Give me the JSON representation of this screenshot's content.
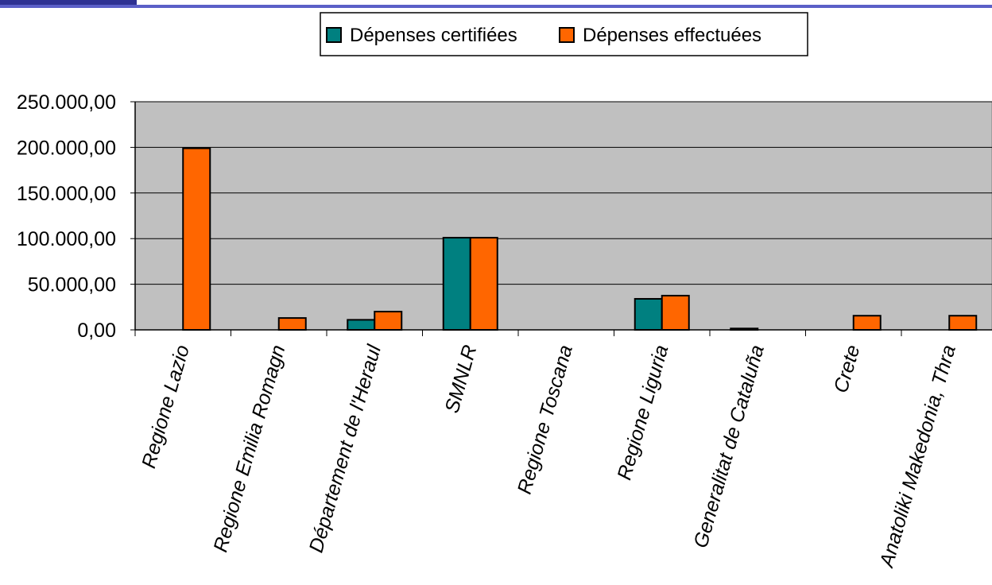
{
  "colors": {
    "header_dark": "#2e3192",
    "header_line": "#5b5fc7",
    "plot_bg": "#c0c0c0",
    "series_certified": "#008080",
    "series_spent": "#ff6600"
  },
  "chart_data": {
    "type": "bar",
    "title": "",
    "xlabel": "",
    "ylabel": "",
    "ylim": [
      0,
      250000
    ],
    "yticks": [
      0,
      50000,
      100000,
      150000,
      200000,
      250000
    ],
    "ytick_labels": [
      "0,00",
      "50.000,00",
      "100.000,00",
      "150.000,00",
      "200.000,00",
      "250.000,00"
    ],
    "grid": true,
    "legend_position": "top",
    "categories": [
      "Regione Lazio",
      "Regione Emilia Romagn",
      "Département de l'Heraul",
      "SMNLR",
      "Regione Toscana",
      "Regione Liguria",
      "Generalitat de Cataluña",
      "Crete",
      "Anatoliki Makedonia, Thra"
    ],
    "series": [
      {
        "name": "Dépenses certifiées",
        "color": "#008080",
        "values": [
          0,
          0,
          11000,
          101000,
          0,
          34000,
          1500,
          0,
          0
        ]
      },
      {
        "name": "Dépenses effectuées",
        "color": "#ff6600",
        "values": [
          199000,
          13000,
          20000,
          101000,
          0,
          37500,
          0,
          15500,
          15500
        ]
      }
    ]
  }
}
